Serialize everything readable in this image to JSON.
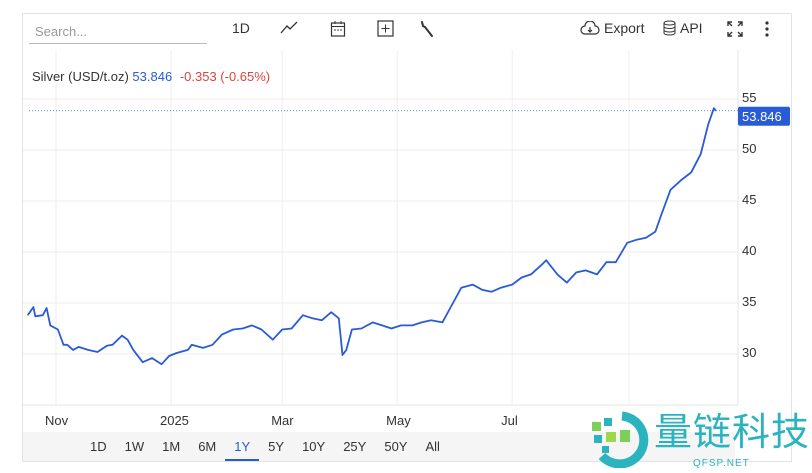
{
  "toolbar": {
    "search_placeholder": "Search...",
    "interval": "1D",
    "export_label": "Export",
    "api_label": "API",
    "icons": [
      "line-chart-icon",
      "calendar-icon",
      "plus-square-icon",
      "wrench-icon",
      "cloud-download-icon",
      "database-icon",
      "fullscreen-icon",
      "more-vertical-icon"
    ]
  },
  "legend": {
    "name": "Silver (USD/t.oz)",
    "price": "53.846",
    "change": "-0.353 (-0.65%)"
  },
  "last_price_label": "53.846",
  "ranges": [
    {
      "label": "1D"
    },
    {
      "label": "1W"
    },
    {
      "label": "1M"
    },
    {
      "label": "6M"
    },
    {
      "label": "1Y",
      "active": true
    },
    {
      "label": "5Y"
    },
    {
      "label": "10Y"
    },
    {
      "label": "25Y"
    },
    {
      "label": "50Y"
    },
    {
      "label": "All"
    }
  ],
  "watermark": {
    "text": "量链科技",
    "sub": "QFSP.NET"
  },
  "colors": {
    "line": "#2a5bd7",
    "negative": "#d9453b",
    "accent": "#2a5bd7",
    "watermark": "#2bb3c0"
  },
  "chart_data": {
    "type": "line",
    "title": "",
    "xlabel": "",
    "ylabel": "",
    "x_tick_labels": [
      {
        "date": "2024-11-01",
        "label": "Nov"
      },
      {
        "date": "2025-01-01",
        "label": "2025"
      },
      {
        "date": "2025-03-01",
        "label": "Mar"
      },
      {
        "date": "2025-05-01",
        "label": "May"
      },
      {
        "date": "2025-07-01",
        "label": "Jul"
      }
    ],
    "y_ticks": [
      30,
      35,
      40,
      45,
      50,
      55
    ],
    "ylim": [
      26,
      57
    ],
    "y_axis_position": "right",
    "grid": true,
    "series": [
      {
        "name": "Silver (USD/t.oz)",
        "points": [
          [
            "2024-10-17",
            33.8
          ],
          [
            "2024-10-20",
            34.6
          ],
          [
            "2024-10-21",
            33.7
          ],
          [
            "2024-10-25",
            33.8
          ],
          [
            "2024-10-27",
            34.5
          ],
          [
            "2024-10-29",
            32.8
          ],
          [
            "2024-11-02",
            32.4
          ],
          [
            "2024-11-05",
            30.9
          ],
          [
            "2024-11-07",
            30.9
          ],
          [
            "2024-11-10",
            30.4
          ],
          [
            "2024-11-13",
            30.7
          ],
          [
            "2024-11-18",
            30.4
          ],
          [
            "2024-11-23",
            30.2
          ],
          [
            "2024-11-28",
            30.8
          ],
          [
            "2024-12-01",
            30.9
          ],
          [
            "2024-12-06",
            31.8
          ],
          [
            "2024-12-09",
            31.4
          ],
          [
            "2024-12-12",
            30.4
          ],
          [
            "2024-12-17",
            29.2
          ],
          [
            "2024-12-22",
            29.6
          ],
          [
            "2024-12-27",
            29.0
          ],
          [
            "2024-12-31",
            29.8
          ],
          [
            "2025-01-04",
            30.1
          ],
          [
            "2025-01-10",
            30.4
          ],
          [
            "2025-01-12",
            30.9
          ],
          [
            "2025-01-18",
            30.6
          ],
          [
            "2025-01-23",
            30.9
          ],
          [
            "2025-01-28",
            31.9
          ],
          [
            "2025-02-03",
            32.4
          ],
          [
            "2025-02-08",
            32.5
          ],
          [
            "2025-02-13",
            32.8
          ],
          [
            "2025-02-18",
            32.4
          ],
          [
            "2025-02-24",
            31.4
          ],
          [
            "2025-03-01",
            32.4
          ],
          [
            "2025-03-06",
            32.5
          ],
          [
            "2025-03-12",
            33.8
          ],
          [
            "2025-03-17",
            33.5
          ],
          [
            "2025-03-22",
            33.3
          ],
          [
            "2025-03-27",
            34.1
          ],
          [
            "2025-03-31",
            33.5
          ],
          [
            "2025-04-02",
            29.9
          ],
          [
            "2025-04-04",
            30.4
          ],
          [
            "2025-04-07",
            32.4
          ],
          [
            "2025-04-12",
            32.5
          ],
          [
            "2025-04-18",
            33.1
          ],
          [
            "2025-04-23",
            32.8
          ],
          [
            "2025-04-28",
            32.5
          ],
          [
            "2025-05-03",
            32.8
          ],
          [
            "2025-05-09",
            32.8
          ],
          [
            "2025-05-14",
            33.1
          ],
          [
            "2025-05-19",
            33.3
          ],
          [
            "2025-05-25",
            33.1
          ],
          [
            "2025-05-30",
            34.8
          ],
          [
            "2025-06-04",
            36.5
          ],
          [
            "2025-06-10",
            36.8
          ],
          [
            "2025-06-15",
            36.3
          ],
          [
            "2025-06-20",
            36.1
          ],
          [
            "2025-06-25",
            36.5
          ],
          [
            "2025-07-01",
            36.8
          ],
          [
            "2025-07-06",
            37.5
          ],
          [
            "2025-07-11",
            37.8
          ],
          [
            "2025-07-17",
            38.8
          ],
          [
            "2025-07-19",
            39.2
          ],
          [
            "2025-07-25",
            37.8
          ],
          [
            "2025-07-30",
            37.0
          ],
          [
            "2025-08-04",
            38.0
          ],
          [
            "2025-08-09",
            38.2
          ],
          [
            "2025-08-15",
            37.8
          ],
          [
            "2025-08-20",
            39.0
          ],
          [
            "2025-08-25",
            39.0
          ],
          [
            "2025-08-31",
            40.9
          ],
          [
            "2025-09-05",
            41.2
          ],
          [
            "2025-09-10",
            41.4
          ],
          [
            "2025-09-15",
            42.0
          ],
          [
            "2025-09-18",
            43.6
          ],
          [
            "2025-09-23",
            46.1
          ],
          [
            "2025-09-29",
            47.1
          ],
          [
            "2025-10-04",
            47.8
          ],
          [
            "2025-10-09",
            49.6
          ],
          [
            "2025-10-13",
            52.5
          ],
          [
            "2025-10-16",
            54.1
          ],
          [
            "2025-10-17",
            53.846
          ]
        ]
      }
    ]
  }
}
